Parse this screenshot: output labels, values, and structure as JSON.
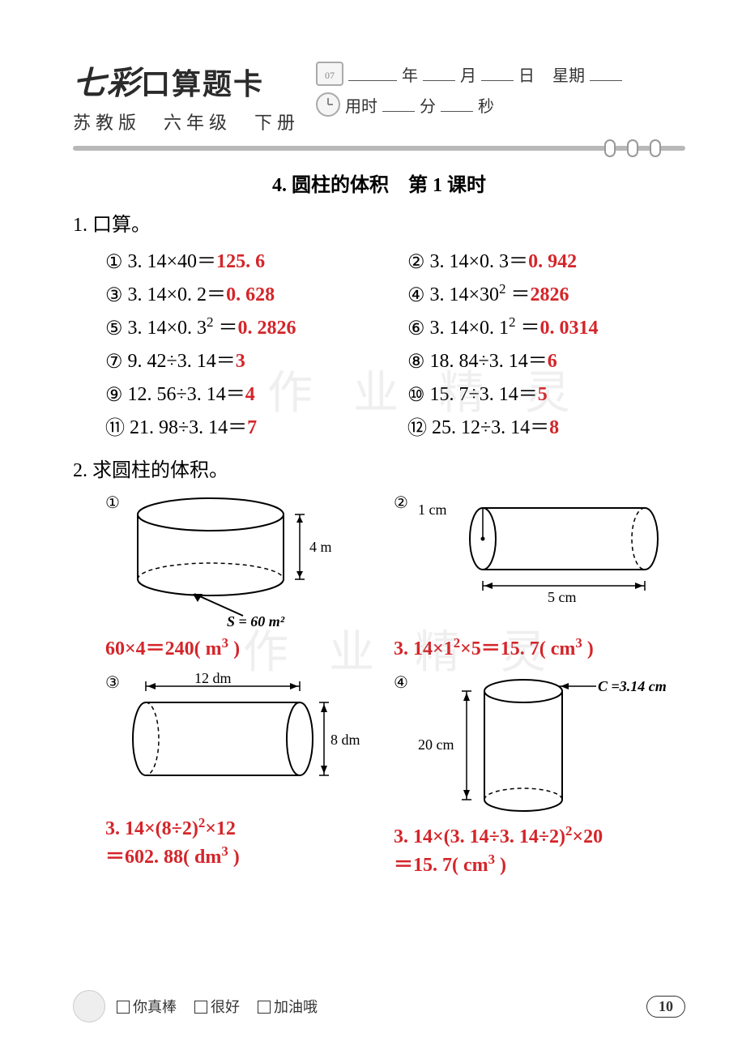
{
  "header": {
    "brand": "七彩",
    "title_rest": "口算题卡",
    "subtitle": "苏教版　六年级　下册",
    "calendar_label": "07",
    "date_labels": {
      "year": "年",
      "month": "月",
      "day": "日",
      "weekday": "星期"
    },
    "time_labels": {
      "prefix": "用时",
      "min": "分",
      "sec": "秒"
    }
  },
  "section_title": "4. 圆柱的体积　第 1 课时",
  "q1": {
    "heading": "1. 口算。",
    "items": [
      {
        "n": "①",
        "expr": "3. 14×40＝",
        "ans": "125. 6"
      },
      {
        "n": "②",
        "expr": "3. 14×0. 3＝",
        "ans": "0. 942"
      },
      {
        "n": "③",
        "expr": "3. 14×0. 2＝",
        "ans": "0. 628"
      },
      {
        "n": "④",
        "expr_html": "3. 14×30<sup class='exp'>2</sup> ＝",
        "ans": "2826"
      },
      {
        "n": "⑤",
        "expr_html": "3. 14×0. 3<sup class='exp'>2</sup> ＝",
        "ans": "0. 2826"
      },
      {
        "n": "⑥",
        "expr_html": "3. 14×0. 1<sup class='exp'>2</sup> ＝",
        "ans": "0. 0314"
      },
      {
        "n": "⑦",
        "expr": "9. 42÷3. 14＝",
        "ans": "3"
      },
      {
        "n": "⑧",
        "expr": "18. 84÷3. 14＝",
        "ans": "6"
      },
      {
        "n": "⑨",
        "expr": "12. 56÷3. 14＝",
        "ans": "4"
      },
      {
        "n": "⑩",
        "expr": "15. 7÷3. 14＝",
        "ans": "5"
      },
      {
        "n": "⑪",
        "expr": "21. 98÷3. 14＝",
        "ans": "7"
      },
      {
        "n": "⑫",
        "expr": "25. 12÷3. 14＝",
        "ans": "8"
      }
    ]
  },
  "q2": {
    "heading": "2. 求圆柱的体积。",
    "cells": [
      {
        "n": "①",
        "dims": {
          "height_label": "4 m",
          "base_label": "S = 60 m²"
        },
        "answer_html": "60×4＝240( m<sup class='exp'>3</sup> )"
      },
      {
        "n": "②",
        "dims": {
          "r_label": "1 cm",
          "len_label": "5 cm"
        },
        "answer_html": "3. 14×1<sup class='exp'>2</sup>×5＝15. 7( cm<sup class='exp'>3</sup> )"
      },
      {
        "n": "③",
        "dims": {
          "len_label": "12 dm",
          "d_label": "8 dm"
        },
        "answer_html": "3. 14×(8÷2)<sup class='exp'>2</sup>×12<br>＝602. 88( dm<sup class='exp'>3</sup> )"
      },
      {
        "n": "④",
        "dims": {
          "h_label": "20 cm",
          "c_label": "C =3.14 cm"
        },
        "answer_html": "3. 14×(3. 14÷3. 14÷2)<sup class='exp'>2</sup>×20<br>＝15. 7( cm<sup class='exp'>3</sup> )"
      }
    ]
  },
  "footer": {
    "opts": [
      "你真棒",
      "很好",
      "加油哦"
    ],
    "page": "10"
  },
  "watermark": "作 业 精 灵",
  "colors": {
    "answer": "#d4252a",
    "text": "#000000",
    "divider": "#b8b8b8"
  }
}
